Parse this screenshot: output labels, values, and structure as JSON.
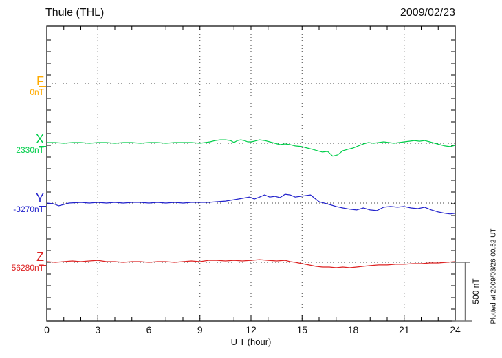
{
  "header": {
    "title": "Thule (THL)",
    "date": "2009/02/23"
  },
  "xaxis": {
    "label": "U T (hour)",
    "tick_labels": [
      "0",
      "3",
      "6",
      "9",
      "12",
      "15",
      "18",
      "21",
      "24"
    ]
  },
  "scale_bar": {
    "label": "500 nT"
  },
  "footnote": "Plotted at 2009/03/26 00:52 UT",
  "components": [
    {
      "id": "F",
      "letter": "F",
      "baseline_label": "0nT",
      "color": "#FFAB00"
    },
    {
      "id": "X",
      "letter": "X",
      "baseline_label": "2330nT",
      "color": "#00CE4A"
    },
    {
      "id": "Y",
      "letter": "Y",
      "baseline_label": "-3270nT",
      "color": "#2222CC"
    },
    {
      "id": "Z",
      "letter": "Z",
      "baseline_label": "56280nT",
      "color": "#DD2222"
    }
  ],
  "chart_data": {
    "type": "line",
    "title": "Thule (THL) magnetogram",
    "date": "2009/02/23",
    "xlabel": "U T (hour)",
    "xlim": [
      0,
      24
    ],
    "x_ticks": [
      0,
      3,
      6,
      9,
      12,
      15,
      18,
      21,
      24
    ],
    "grid": "dotted vertical at 3h intervals, dotted horizontal at each component baseline",
    "scale_bar_nT": 500,
    "legend_position": "left margin (component letters with baseline values)",
    "series": [
      {
        "name": "F",
        "baseline_nT": 0,
        "color": "#FFAB00",
        "points": []
      },
      {
        "name": "X",
        "baseline_nT": 2330,
        "color": "#00CE4A",
        "points": [
          [
            0,
            2336
          ],
          [
            0.5,
            2336
          ],
          [
            1,
            2330
          ],
          [
            1.5,
            2336
          ],
          [
            2,
            2336
          ],
          [
            2.5,
            2330
          ],
          [
            3,
            2336
          ],
          [
            3.5,
            2336
          ],
          [
            4,
            2330
          ],
          [
            4.5,
            2336
          ],
          [
            5,
            2336
          ],
          [
            5.5,
            2330
          ],
          [
            6,
            2336
          ],
          [
            6.5,
            2336
          ],
          [
            7,
            2330
          ],
          [
            7.5,
            2336
          ],
          [
            8,
            2336
          ],
          [
            8.5,
            2336
          ],
          [
            9,
            2330
          ],
          [
            9.3,
            2336
          ],
          [
            9.6,
            2342
          ],
          [
            9.9,
            2353
          ],
          [
            10.2,
            2359
          ],
          [
            10.5,
            2359
          ],
          [
            10.8,
            2353
          ],
          [
            11,
            2336
          ],
          [
            11.2,
            2353
          ],
          [
            11.4,
            2359
          ],
          [
            11.6,
            2353
          ],
          [
            11.8,
            2342
          ],
          [
            12,
            2342
          ],
          [
            12.2,
            2347
          ],
          [
            12.5,
            2359
          ],
          [
            12.8,
            2353
          ],
          [
            13.1,
            2342
          ],
          [
            13.4,
            2330
          ],
          [
            13.7,
            2318
          ],
          [
            14,
            2324
          ],
          [
            14.3,
            2318
          ],
          [
            14.6,
            2307
          ],
          [
            15,
            2301
          ],
          [
            15.3,
            2289
          ],
          [
            15.6,
            2278
          ],
          [
            15.9,
            2266
          ],
          [
            16.2,
            2254
          ],
          [
            16.5,
            2260
          ],
          [
            16.8,
            2220
          ],
          [
            17.1,
            2231
          ],
          [
            17.4,
            2266
          ],
          [
            17.7,
            2278
          ],
          [
            18,
            2289
          ],
          [
            18.3,
            2307
          ],
          [
            18.6,
            2324
          ],
          [
            18.9,
            2336
          ],
          [
            19.2,
            2330
          ],
          [
            19.5,
            2336
          ],
          [
            19.8,
            2342
          ],
          [
            20.1,
            2336
          ],
          [
            20.4,
            2330
          ],
          [
            20.7,
            2336
          ],
          [
            21,
            2342
          ],
          [
            21.3,
            2347
          ],
          [
            21.6,
            2353
          ],
          [
            21.9,
            2347
          ],
          [
            22.2,
            2353
          ],
          [
            22.5,
            2342
          ],
          [
            22.8,
            2330
          ],
          [
            23.1,
            2318
          ],
          [
            23.4,
            2307
          ],
          [
            23.7,
            2301
          ],
          [
            24,
            2313
          ]
        ]
      },
      {
        "name": "Y",
        "baseline_nT": -3270,
        "color": "#2222CC",
        "points": [
          [
            0,
            -3270
          ],
          [
            0.4,
            -3276
          ],
          [
            0.7,
            -3293
          ],
          [
            1,
            -3282
          ],
          [
            1.3,
            -3270
          ],
          [
            2,
            -3264
          ],
          [
            2.5,
            -3270
          ],
          [
            3,
            -3264
          ],
          [
            3.5,
            -3270
          ],
          [
            4,
            -3264
          ],
          [
            4.5,
            -3270
          ],
          [
            5,
            -3264
          ],
          [
            5.5,
            -3264
          ],
          [
            6,
            -3270
          ],
          [
            6.5,
            -3264
          ],
          [
            7,
            -3270
          ],
          [
            7.5,
            -3264
          ],
          [
            8,
            -3270
          ],
          [
            8.5,
            -3264
          ],
          [
            9,
            -3264
          ],
          [
            9.5,
            -3264
          ],
          [
            10,
            -3258
          ],
          [
            10.5,
            -3253
          ],
          [
            11,
            -3241
          ],
          [
            11.5,
            -3229
          ],
          [
            11.9,
            -3218
          ],
          [
            12.2,
            -3235
          ],
          [
            12.5,
            -3218
          ],
          [
            12.8,
            -3200
          ],
          [
            13.1,
            -3218
          ],
          [
            13.4,
            -3212
          ],
          [
            13.7,
            -3223
          ],
          [
            14,
            -3194
          ],
          [
            14.3,
            -3200
          ],
          [
            14.6,
            -3218
          ],
          [
            14.9,
            -3212
          ],
          [
            15.2,
            -3206
          ],
          [
            15.5,
            -3200
          ],
          [
            15.8,
            -3235
          ],
          [
            16,
            -3258
          ],
          [
            16.3,
            -3270
          ],
          [
            16.6,
            -3282
          ],
          [
            17,
            -3299
          ],
          [
            17.4,
            -3311
          ],
          [
            17.8,
            -3322
          ],
          [
            18.2,
            -3328
          ],
          [
            18.6,
            -3311
          ],
          [
            19,
            -3328
          ],
          [
            19.4,
            -3334
          ],
          [
            19.8,
            -3305
          ],
          [
            20.2,
            -3299
          ],
          [
            20.6,
            -3305
          ],
          [
            21,
            -3299
          ],
          [
            21.4,
            -3311
          ],
          [
            21.8,
            -3317
          ],
          [
            22.2,
            -3305
          ],
          [
            22.6,
            -3328
          ],
          [
            23,
            -3346
          ],
          [
            23.4,
            -3357
          ],
          [
            23.7,
            -3363
          ],
          [
            24,
            -3357
          ]
        ]
      },
      {
        "name": "Z",
        "baseline_nT": 56280,
        "color": "#DD2222",
        "points": [
          [
            0,
            56286
          ],
          [
            0.5,
            56280
          ],
          [
            1,
            56286
          ],
          [
            1.5,
            56292
          ],
          [
            2,
            56286
          ],
          [
            2.5,
            56292
          ],
          [
            3,
            56297
          ],
          [
            3.5,
            56286
          ],
          [
            4,
            56286
          ],
          [
            4.5,
            56280
          ],
          [
            5,
            56286
          ],
          [
            5.5,
            56286
          ],
          [
            6,
            56280
          ],
          [
            6.5,
            56286
          ],
          [
            7,
            56286
          ],
          [
            7.5,
            56280
          ],
          [
            8,
            56286
          ],
          [
            8.5,
            56292
          ],
          [
            9,
            56286
          ],
          [
            9.5,
            56297
          ],
          [
            10,
            56297
          ],
          [
            10.5,
            56292
          ],
          [
            11,
            56297
          ],
          [
            11.5,
            56292
          ],
          [
            12,
            56297
          ],
          [
            12.5,
            56303
          ],
          [
            13,
            56297
          ],
          [
            13.5,
            56292
          ],
          [
            14,
            56297
          ],
          [
            14.3,
            56286
          ],
          [
            14.6,
            56280
          ],
          [
            15,
            56268
          ],
          [
            15.4,
            56257
          ],
          [
            15.8,
            56245
          ],
          [
            16.2,
            56239
          ],
          [
            16.6,
            56239
          ],
          [
            17,
            56233
          ],
          [
            17.4,
            56239
          ],
          [
            17.8,
            56233
          ],
          [
            18.2,
            56239
          ],
          [
            18.6,
            56245
          ],
          [
            19,
            56251
          ],
          [
            19.5,
            56257
          ],
          [
            20,
            56257
          ],
          [
            20.5,
            56263
          ],
          [
            21,
            56263
          ],
          [
            21.5,
            56268
          ],
          [
            22,
            56268
          ],
          [
            22.5,
            56274
          ],
          [
            23,
            56274
          ],
          [
            23.5,
            56280
          ],
          [
            24,
            56286
          ]
        ]
      }
    ]
  }
}
